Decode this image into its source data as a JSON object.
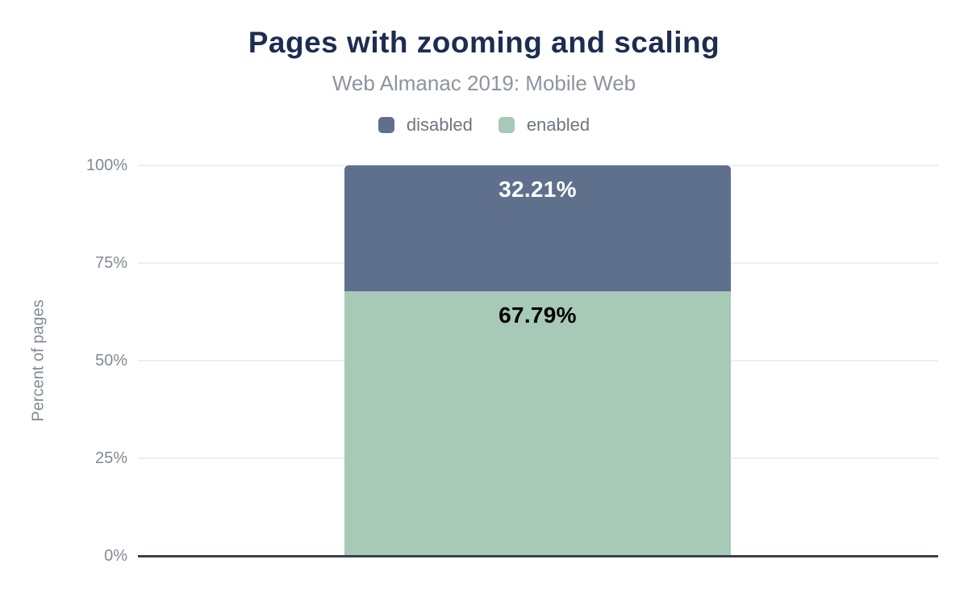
{
  "header": {
    "title": "Pages with zooming and scaling",
    "subtitle": "Web Almanac 2019: Mobile Web"
  },
  "legend": [
    {
      "label": "disabled",
      "color": "#5e708c"
    },
    {
      "label": "enabled",
      "color": "#a6c9b8"
    }
  ],
  "chart_data": {
    "type": "bar",
    "stacked": true,
    "categories": [
      ""
    ],
    "series": [
      {
        "name": "disabled",
        "values": [
          32.21
        ],
        "color": "#5e708c",
        "data_label": "32.21%",
        "label_color": "#ffffff"
      },
      {
        "name": "enabled",
        "values": [
          67.79
        ],
        "color": "#a6c9b8",
        "data_label": "67.79%",
        "label_color": "#000000"
      }
    ],
    "title": "Pages with zooming and scaling",
    "subtitle": "Web Almanac 2019: Mobile Web",
    "xlabel": "",
    "ylabel": "Percent of pages",
    "ylim": [
      0,
      100
    ],
    "yticks": [
      {
        "value": 0,
        "label": "0%"
      },
      {
        "value": 25,
        "label": "25%"
      },
      {
        "value": 50,
        "label": "50%"
      },
      {
        "value": 75,
        "label": "75%"
      },
      {
        "value": 100,
        "label": "100%"
      }
    ],
    "grid": true,
    "legend_position": "top"
  },
  "colors": {
    "title": "#1d2d50",
    "subtitle": "#8d949e",
    "legend_text": "#6e7680",
    "tick_text": "#828a94",
    "gridline": "#eeeeee",
    "baseline": "#3a414b",
    "background": "#ffffff"
  }
}
